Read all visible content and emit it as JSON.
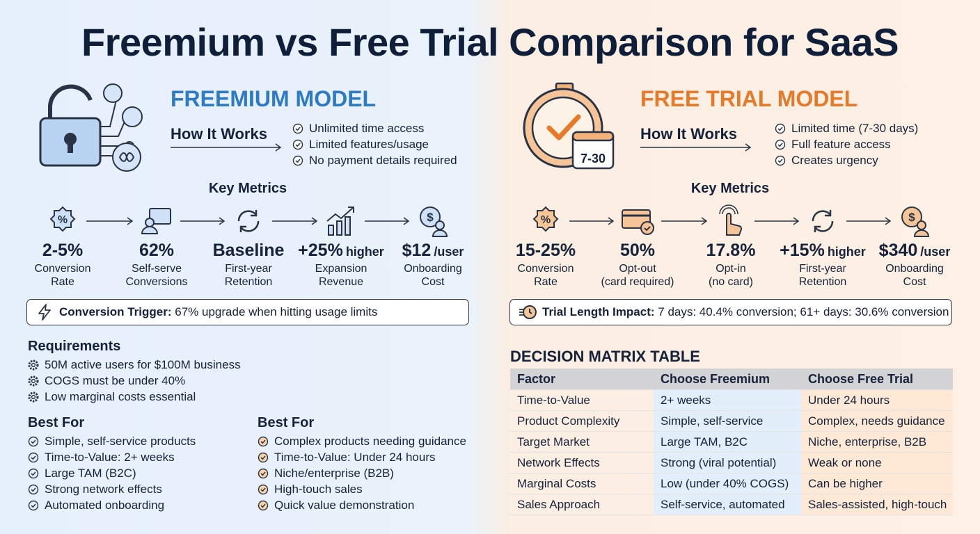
{
  "title": "Freemium vs Free Trial Comparison for SaaS",
  "freemium": {
    "heading": "FREEMIUM MODEL",
    "how_it_works": {
      "label": "How It Works",
      "items": [
        "Unlimited time access",
        "Limited features/usage",
        "No payment details required"
      ]
    },
    "key_metrics": {
      "title": "Key Metrics",
      "items": [
        {
          "value": "2-5%",
          "label": [
            "Conversion",
            "Rate"
          ]
        },
        {
          "value": "62%",
          "label": [
            "Self-serve",
            "Conversions"
          ]
        },
        {
          "value": "Baseline",
          "label": [
            "First-year",
            "Retention"
          ]
        },
        {
          "value": "+25%",
          "suffix": "higher",
          "label": [
            "Expansion",
            "Revenue"
          ]
        },
        {
          "value": "$12",
          "suffix": "/user",
          "label": [
            "Onboarding",
            "Cost"
          ]
        }
      ]
    },
    "callout": {
      "label": "Conversion Trigger:",
      "text": "67% upgrade when hitting usage limits"
    },
    "requirements": {
      "title": "Requirements",
      "items": [
        "50M active users for $100M business",
        "COGS must be under 40%",
        "Low marginal costs essential"
      ]
    },
    "best_for": {
      "title": "Best For",
      "items": [
        "Simple, self-service products",
        "Time-to-Value: 2+ weeks",
        "Large TAM (B2C)",
        "Strong network effects",
        "Automated onboarding"
      ]
    }
  },
  "free_trial": {
    "heading": "FREE TRIAL MODEL",
    "icon_label": "7-30",
    "how_it_works": {
      "label": "How It Works",
      "items": [
        "Limited time (7-30 days)",
        "Full feature access",
        "Creates urgency"
      ]
    },
    "key_metrics": {
      "title": "Key Metrics",
      "items": [
        {
          "value": "15-25%",
          "label": [
            "Conversion",
            "Rate"
          ]
        },
        {
          "value": "50%",
          "label": [
            "Opt-out",
            "(card required)"
          ]
        },
        {
          "value": "17.8%",
          "label": [
            "Opt-in",
            "(no card)"
          ]
        },
        {
          "value": "+15%",
          "suffix": "higher",
          "label": [
            "First-year",
            "Retention"
          ]
        },
        {
          "value": "$340",
          "suffix": "/user",
          "label": [
            "Onboarding",
            "Cost"
          ]
        }
      ]
    },
    "callout": {
      "label": "Trial Length Impact:",
      "text": "7 days: 40.4% conversion; 61+ days: 30.6% conversion"
    },
    "best_for": {
      "title": "Best For",
      "items": [
        "Complex products needing guidance",
        "Time-to-Value: Under 24 hours",
        "Niche/enterprise (B2B)",
        "High-touch sales",
        "Quick value demonstration"
      ]
    }
  },
  "decision_matrix": {
    "title": "DECISION MATRIX TABLE",
    "header": [
      "Factor",
      "Choose Freemium",
      "Choose Free Trial"
    ],
    "rows": [
      [
        "Time-to-Value",
        "2+ weeks",
        "Under 24 hours"
      ],
      [
        "Product Complexity",
        "Simple, self-service",
        "Complex, needs guidance"
      ],
      [
        "Target Market",
        "Large TAM, B2C",
        "Niche, enterprise, B2B"
      ],
      [
        "Network Effects",
        "Strong (viral potential)",
        "Weak or none"
      ],
      [
        "Marginal Costs",
        "Low (under 40% COGS)",
        "Can be higher"
      ],
      [
        "Sales Approach",
        "Self-service, automated",
        "Sales-assisted, high-touch"
      ]
    ]
  }
}
